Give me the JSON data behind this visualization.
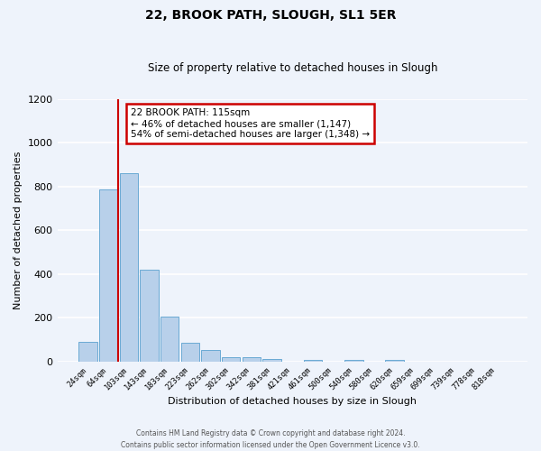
{
  "title": "22, BROOK PATH, SLOUGH, SL1 5ER",
  "subtitle": "Size of property relative to detached houses in Slough",
  "xlabel": "Distribution of detached houses by size in Slough",
  "ylabel": "Number of detached properties",
  "bar_labels": [
    "24sqm",
    "64sqm",
    "103sqm",
    "143sqm",
    "183sqm",
    "223sqm",
    "262sqm",
    "302sqm",
    "342sqm",
    "381sqm",
    "421sqm",
    "461sqm",
    "500sqm",
    "540sqm",
    "580sqm",
    "620sqm",
    "659sqm",
    "699sqm",
    "739sqm",
    "778sqm",
    "818sqm"
  ],
  "bar_heights": [
    90,
    785,
    860,
    420,
    205,
    85,
    55,
    20,
    20,
    12,
    0,
    10,
    0,
    10,
    0,
    10,
    0,
    0,
    0,
    0,
    0
  ],
  "bar_color": "#b8d0ea",
  "bar_edge_color": "#6aaad4",
  "background_color": "#eef3fb",
  "grid_color": "#ffffff",
  "ylim": [
    0,
    1200
  ],
  "yticks": [
    0,
    200,
    400,
    600,
    800,
    1000,
    1200
  ],
  "vline_color": "#cc0000",
  "annotation_text": "22 BROOK PATH: 115sqm\n← 46% of detached houses are smaller (1,147)\n54% of semi-detached houses are larger (1,348) →",
  "annotation_box_color": "#ffffff",
  "annotation_box_edge": "#cc0000",
  "footer_line1": "Contains HM Land Registry data © Crown copyright and database right 2024.",
  "footer_line2": "Contains public sector information licensed under the Open Government Licence v3.0.",
  "fig_width": 6.0,
  "fig_height": 5.0,
  "dpi": 100
}
